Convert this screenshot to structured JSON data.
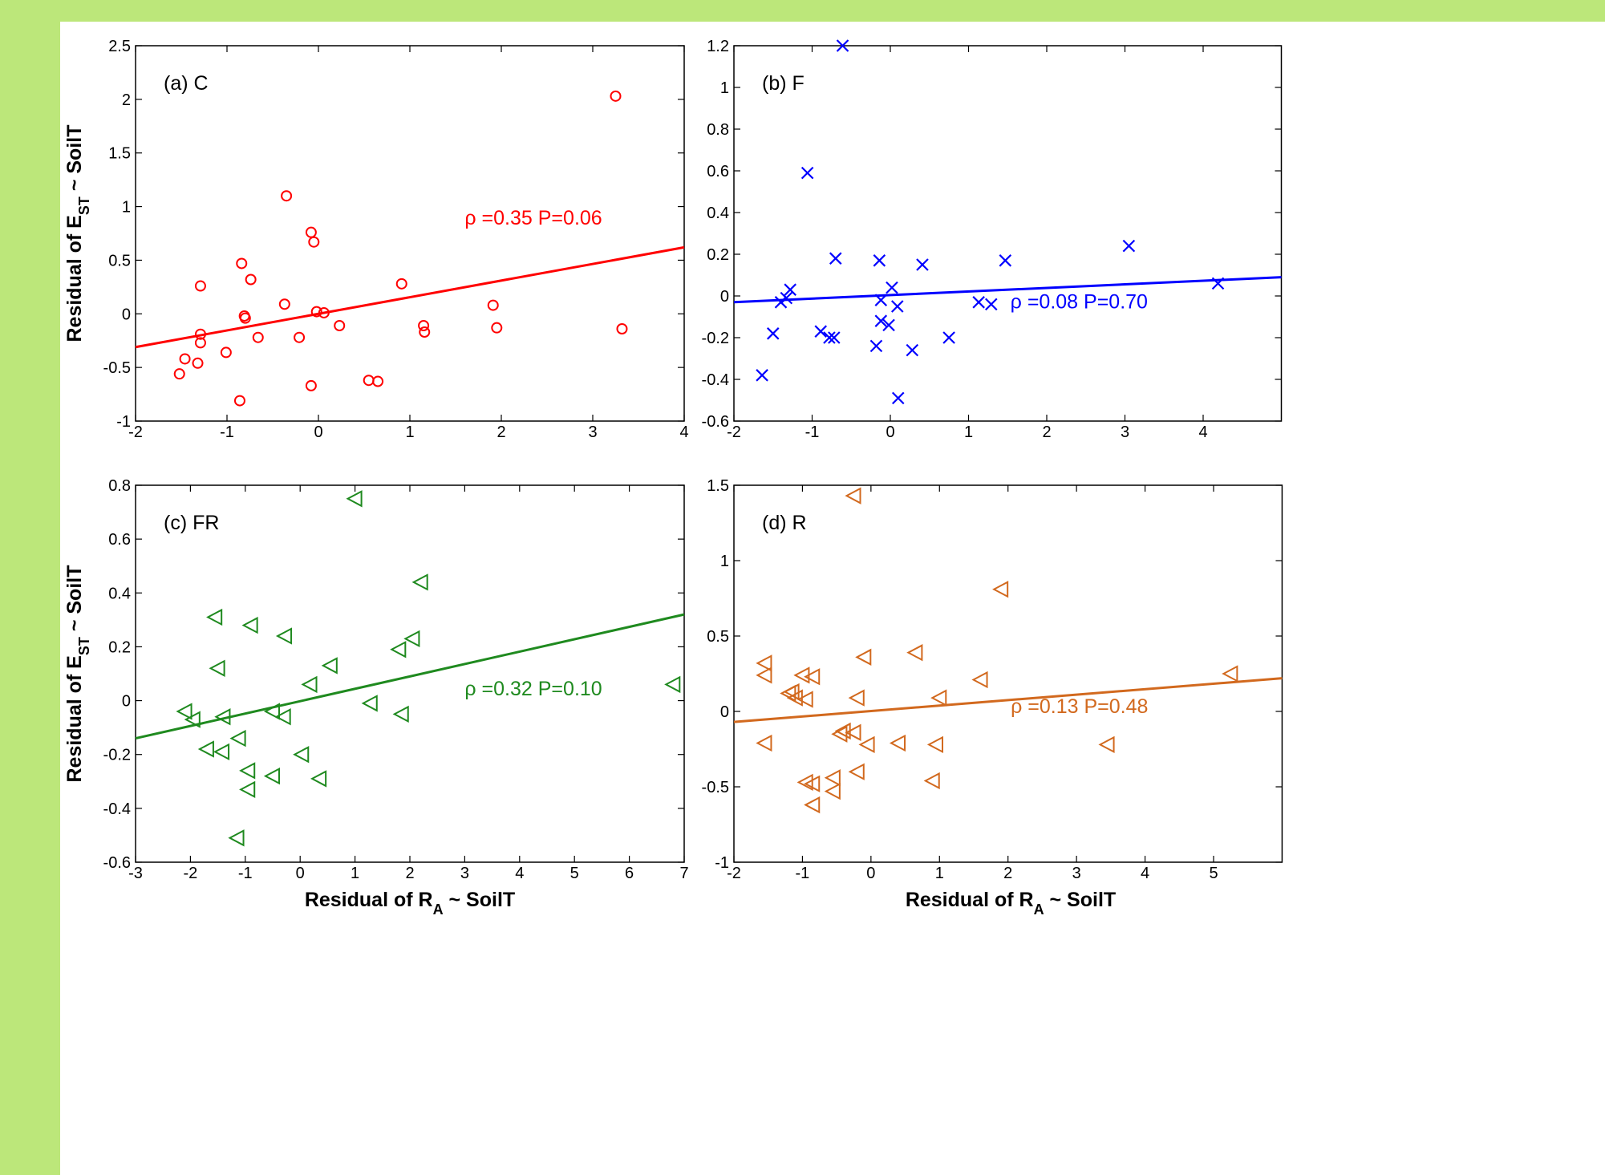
{
  "chart_data": [
    {
      "type": "scatter",
      "panel": "(a) C",
      "xlim": [
        -2,
        4
      ],
      "ylim": [
        -1,
        2.5
      ],
      "xticks": [
        -2,
        -1,
        0,
        1,
        2,
        3,
        4
      ],
      "yticks": [
        -1,
        -0.5,
        0,
        0.5,
        1,
        1.5,
        2,
        2.5
      ],
      "xlabel": "",
      "ylabel": "Residual of E_ST ~ SoilT",
      "marker": "circle",
      "color": "#ff0000",
      "annotation": "ρ =0.35 P=0.06",
      "fit_line": [
        [
          -2,
          -0.31
        ],
        [
          4,
          0.62
        ]
      ],
      "points": [
        [
          3.25,
          2.03
        ],
        [
          -0.35,
          1.1
        ],
        [
          -0.08,
          0.76
        ],
        [
          -0.05,
          0.67
        ],
        [
          -0.84,
          0.47
        ],
        [
          -0.74,
          0.32
        ],
        [
          -1.29,
          0.26
        ],
        [
          0.91,
          0.28
        ],
        [
          -0.37,
          0.09
        ],
        [
          -0.81,
          -0.02
        ],
        [
          -0.8,
          -0.04
        ],
        [
          -0.02,
          0.02
        ],
        [
          0.06,
          0.01
        ],
        [
          1.91,
          0.08
        ],
        [
          -1.29,
          -0.19
        ],
        [
          -1.29,
          -0.27
        ],
        [
          0.23,
          -0.11
        ],
        [
          1.15,
          -0.11
        ],
        [
          1.16,
          -0.17
        ],
        [
          1.95,
          -0.13
        ],
        [
          3.32,
          -0.14
        ],
        [
          -0.21,
          -0.22
        ],
        [
          -0.66,
          -0.22
        ],
        [
          -1.01,
          -0.36
        ],
        [
          -1.46,
          -0.42
        ],
        [
          -1.32,
          -0.46
        ],
        [
          -1.52,
          -0.56
        ],
        [
          0.55,
          -0.62
        ],
        [
          0.65,
          -0.63
        ],
        [
          -0.08,
          -0.67
        ],
        [
          -0.86,
          -0.81
        ]
      ]
    },
    {
      "type": "scatter",
      "panel": "(b) F",
      "xlim": [
        -2,
        5
      ],
      "ylim": [
        -0.6,
        1.2
      ],
      "xticks": [
        -2,
        -1,
        0,
        1,
        2,
        3,
        4
      ],
      "yticks": [
        -0.6,
        -0.4,
        -0.2,
        0,
        0.2,
        0.4,
        0.6,
        0.8,
        1,
        1.2
      ],
      "xlabel": "",
      "ylabel": "",
      "marker": "x",
      "color": "#0000ff",
      "annotation": "ρ =0.08 P=0.70",
      "fit_line": [
        [
          -2,
          -0.03
        ],
        [
          5,
          0.09
        ]
      ],
      "points": [
        [
          -0.61,
          1.2
        ],
        [
          -1.06,
          0.59
        ],
        [
          -0.7,
          0.18
        ],
        [
          -0.14,
          0.17
        ],
        [
          0.41,
          0.15
        ],
        [
          1.47,
          0.17
        ],
        [
          3.05,
          0.24
        ],
        [
          4.19,
          0.06
        ],
        [
          -1.28,
          0.03
        ],
        [
          0.02,
          0.04
        ],
        [
          -1.33,
          -0.01
        ],
        [
          -1.4,
          -0.03
        ],
        [
          -0.12,
          -0.02
        ],
        [
          0.09,
          -0.05
        ],
        [
          1.13,
          -0.03
        ],
        [
          1.29,
          -0.04
        ],
        [
          -1.5,
          -0.18
        ],
        [
          -0.89,
          -0.17
        ],
        [
          -0.78,
          -0.2
        ],
        [
          -0.72,
          -0.2
        ],
        [
          -0.12,
          -0.12
        ],
        [
          -0.02,
          -0.14
        ],
        [
          0.75,
          -0.2
        ],
        [
          -0.18,
          -0.24
        ],
        [
          0.28,
          -0.26
        ],
        [
          -1.64,
          -0.38
        ],
        [
          0.1,
          -0.49
        ]
      ]
    },
    {
      "type": "scatter",
      "panel": "(c) FR",
      "xlim": [
        -3,
        7
      ],
      "ylim": [
        -0.6,
        0.8
      ],
      "xticks": [
        -3,
        -2,
        -1,
        0,
        1,
        2,
        3,
        4,
        5,
        6,
        7
      ],
      "yticks": [
        -0.6,
        -0.4,
        -0.2,
        0,
        0.2,
        0.4,
        0.6,
        0.8
      ],
      "xlabel": "Residual of R_A ~ SoilT",
      "ylabel": "Residual of E_ST ~ SoilT",
      "marker": "triangle-left",
      "color": "#1f8a1f",
      "annotation": "ρ =0.32 P=0.10",
      "fit_line": [
        [
          -3,
          -0.14
        ],
        [
          7,
          0.32
        ]
      ],
      "points": [
        [
          1.0,
          0.75
        ],
        [
          2.2,
          0.44
        ],
        [
          -1.55,
          0.31
        ],
        [
          -0.9,
          0.28
        ],
        [
          -0.28,
          0.24
        ],
        [
          2.05,
          0.23
        ],
        [
          1.8,
          0.19
        ],
        [
          -1.5,
          0.12
        ],
        [
          0.55,
          0.13
        ],
        [
          0.18,
          0.06
        ],
        [
          6.8,
          0.06
        ],
        [
          1.28,
          -0.01
        ],
        [
          -2.1,
          -0.04
        ],
        [
          -1.95,
          -0.07
        ],
        [
          -1.4,
          -0.06
        ],
        [
          -0.5,
          -0.04
        ],
        [
          -0.3,
          -0.06
        ],
        [
          1.85,
          -0.05
        ],
        [
          -1.7,
          -0.18
        ],
        [
          -1.42,
          -0.19
        ],
        [
          -1.12,
          -0.14
        ],
        [
          0.03,
          -0.2
        ],
        [
          -0.95,
          -0.26
        ],
        [
          -0.5,
          -0.28
        ],
        [
          0.35,
          -0.29
        ],
        [
          -0.95,
          -0.33
        ],
        [
          -1.15,
          -0.51
        ]
      ]
    },
    {
      "type": "scatter",
      "panel": "(d) R",
      "xlim": [
        -2,
        6
      ],
      "ylim": [
        -1,
        1.5
      ],
      "xticks": [
        -2,
        -1,
        0,
        1,
        2,
        3,
        4,
        5
      ],
      "yticks": [
        -1,
        -0.5,
        0,
        0.5,
        1,
        1.5
      ],
      "xlabel": "Residual of R_A ~ SoilT",
      "ylabel": "",
      "marker": "triangle-left",
      "color": "#d2691e",
      "annotation": "ρ =0.13 P=0.48",
      "fit_line": [
        [
          -2,
          -0.07
        ],
        [
          6,
          0.22
        ]
      ],
      "points": [
        [
          -0.25,
          1.43
        ],
        [
          1.9,
          0.81
        ],
        [
          0.65,
          0.39
        ],
        [
          -0.1,
          0.36
        ],
        [
          -1.55,
          0.32
        ],
        [
          -1.55,
          0.24
        ],
        [
          -1.0,
          0.24
        ],
        [
          -0.85,
          0.23
        ],
        [
          1.6,
          0.21
        ],
        [
          5.25,
          0.25
        ],
        [
          -1.2,
          0.12
        ],
        [
          -1.15,
          0.13
        ],
        [
          -1.1,
          0.09
        ],
        [
          -0.95,
          0.08
        ],
        [
          -0.2,
          0.09
        ],
        [
          1.0,
          0.09
        ],
        [
          -0.4,
          -0.13
        ],
        [
          -0.45,
          -0.15
        ],
        [
          -0.25,
          -0.14
        ],
        [
          -0.05,
          -0.22
        ],
        [
          0.4,
          -0.21
        ],
        [
          0.95,
          -0.22
        ],
        [
          -1.55,
          -0.21
        ],
        [
          3.45,
          -0.22
        ],
        [
          -0.2,
          -0.4
        ],
        [
          -0.55,
          -0.44
        ],
        [
          -0.95,
          -0.47
        ],
        [
          -0.85,
          -0.48
        ],
        [
          0.9,
          -0.46
        ],
        [
          -0.55,
          -0.53
        ],
        [
          -0.85,
          -0.62
        ]
      ]
    }
  ]
}
